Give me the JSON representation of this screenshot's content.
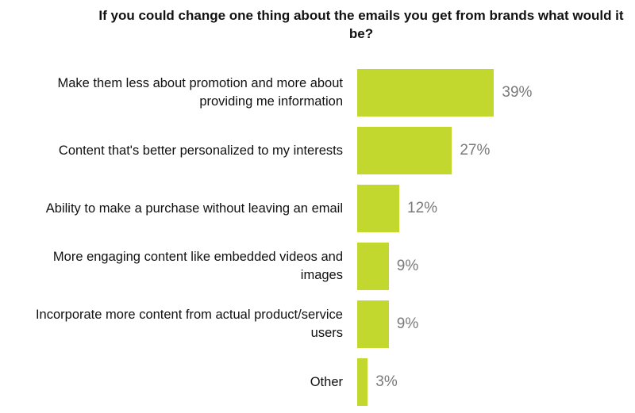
{
  "chart_data": {
    "type": "bar",
    "orientation": "horizontal",
    "title": "If you could change one thing about the emails you get from brands what would it be?",
    "categories": [
      "Make them less about promotion and more about providing me information",
      "Content that's better personalized to my interests",
      "Ability to make a purchase without leaving an email",
      "More engaging content like embedded videos and images",
      "Incorporate more content from actual product/service users",
      "Other"
    ],
    "values": [
      39,
      27,
      12,
      9,
      9,
      3
    ],
    "value_labels": [
      "39%",
      "27%",
      "12%",
      "9%",
      "9%",
      "3%"
    ],
    "color": "#c3d82e"
  }
}
